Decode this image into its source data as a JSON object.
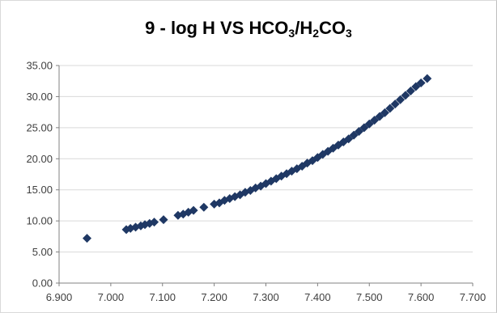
{
  "chart_data": {
    "type": "scatter",
    "title_prefix": "9 - log H VS HCO",
    "title_sub1": "3",
    "title_mid": "/H",
    "title_sub2": "2",
    "title_mid2": "CO",
    "title_sub3": "3",
    "xlabel": "",
    "ylabel": "",
    "xlim": [
      6.9,
      7.7
    ],
    "ylim": [
      0,
      35
    ],
    "x_ticks": [
      "6.900",
      "7.000",
      "7.100",
      "7.200",
      "7.300",
      "7.400",
      "7.500",
      "7.600",
      "7.700"
    ],
    "y_ticks": [
      "0.00",
      "5.00",
      "10.00",
      "15.00",
      "20.00",
      "25.00",
      "30.00",
      "35.00"
    ],
    "x_tick_values": [
      6.9,
      7.0,
      7.1,
      7.2,
      7.3,
      7.4,
      7.5,
      7.6,
      7.7
    ],
    "y_tick_values": [
      0,
      5,
      10,
      15,
      20,
      25,
      30,
      35
    ],
    "grid": "horizontal",
    "legend": "none",
    "marker": "diamond",
    "series": [
      {
        "color": "#1f3864",
        "x": [
          6.954,
          7.03,
          7.038,
          7.048,
          7.058,
          7.066,
          7.075,
          7.084,
          7.102,
          7.13,
          7.14,
          7.15,
          7.16,
          7.18,
          7.2,
          7.21,
          7.22,
          7.23,
          7.24,
          7.25,
          7.26,
          7.27,
          7.28,
          7.29,
          7.3,
          7.31,
          7.32,
          7.33,
          7.34,
          7.35,
          7.36,
          7.37,
          7.38,
          7.39,
          7.4,
          7.41,
          7.42,
          7.43,
          7.44,
          7.45,
          7.46,
          7.47,
          7.48,
          7.49,
          7.5,
          7.51,
          7.52,
          7.53,
          7.54,
          7.55,
          7.56,
          7.57,
          7.58,
          7.59,
          7.6,
          7.612
        ],
        "y": [
          7.2,
          8.6,
          8.8,
          9.0,
          9.2,
          9.4,
          9.6,
          9.8,
          10.2,
          10.9,
          11.1,
          11.4,
          11.7,
          12.2,
          12.7,
          12.9,
          13.3,
          13.6,
          13.9,
          14.2,
          14.6,
          14.9,
          15.3,
          15.6,
          16.0,
          16.4,
          16.8,
          17.2,
          17.6,
          18.0,
          18.4,
          18.8,
          19.3,
          19.7,
          20.2,
          20.7,
          21.2,
          21.7,
          22.2,
          22.7,
          23.2,
          23.8,
          24.4,
          25.0,
          25.6,
          26.2,
          26.8,
          27.4,
          28.1,
          28.8,
          29.5,
          30.2,
          30.9,
          31.6,
          32.2,
          32.9
        ]
      }
    ]
  }
}
